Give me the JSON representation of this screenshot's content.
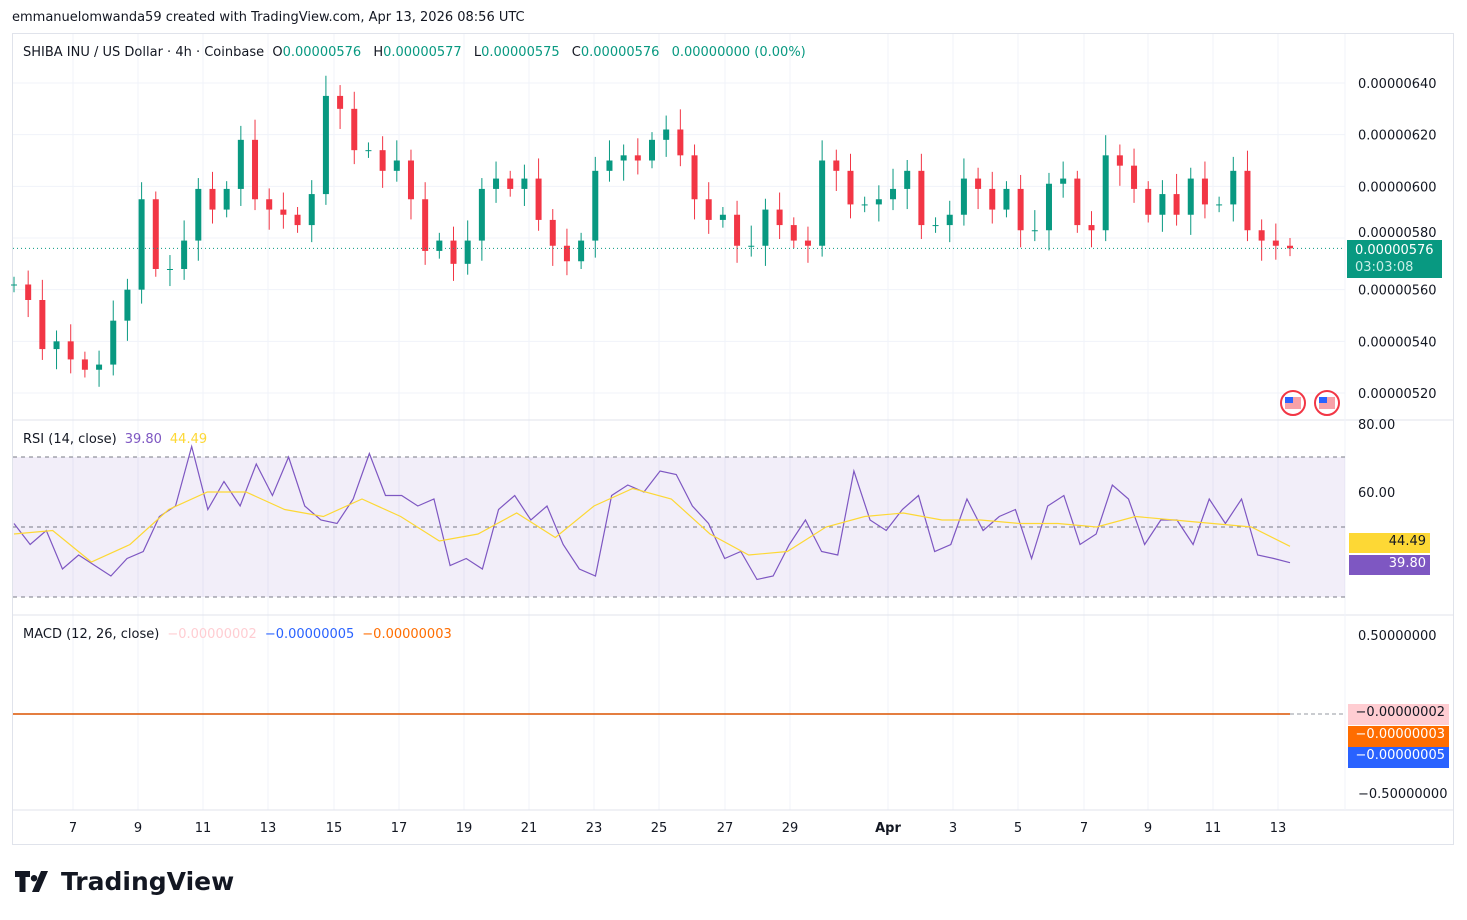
{
  "credit": "emmanuelomwanda59 created with TradingView.com, Apr 13, 2026 08:56 UTC",
  "symbol": {
    "title": "SHIBA INU / US Dollar · 4h · Coinbase",
    "o_label": "O",
    "o": "0.00000576",
    "h_label": "H",
    "h": "0.00000577",
    "l_label": "L",
    "l": "0.00000575",
    "c_label": "C",
    "c": "0.00000576",
    "change": "0.00000000 (0.00%)"
  },
  "price_tag": {
    "value": "0.00000576",
    "countdown": "03:03:08"
  },
  "rsi_legend": {
    "name": "RSI (14, close)",
    "rsi": "39.80",
    "ma": "44.49"
  },
  "macd_legend": {
    "name": "MACD (12, 26, close)",
    "hist": "−0.00000002",
    "macd": "−0.00000005",
    "signal": "−0.00000003"
  },
  "macd_tags": {
    "hist": "−0.00000002",
    "signal": "−0.00000003",
    "macd": "−0.00000005"
  },
  "logo": "TradingView",
  "colors": {
    "up": "#089981",
    "down": "#f23645",
    "rsi": "#7e57c2",
    "rsi_ma": "#fdd835",
    "macd": "#2962ff",
    "signal": "#ff6d00",
    "hist": "#ffcdd2"
  },
  "chart_data": [
    {
      "type": "candlestick",
      "title": "SHIBA INU / US Dollar · 4h · Coinbase",
      "y_ticks": [
        "0.00000640",
        "0.00000620",
        "0.00000600",
        "0.00000580",
        "0.00000560",
        "0.00000540",
        "0.00000520"
      ],
      "ylim": [
        5.14e-06,
        6.61e-06
      ],
      "x_ticks": [
        "7",
        "9",
        "11",
        "13",
        "15",
        "17",
        "19",
        "21",
        "23",
        "25",
        "27",
        "29",
        "Apr",
        "3",
        "5",
        "7",
        "9",
        "11",
        "13"
      ],
      "close": [
        5.62e-06,
        5.56e-06,
        5.37e-06,
        5.4e-06,
        5.33e-06,
        5.29e-06,
        5.31e-06,
        5.48e-06,
        5.6e-06,
        5.95e-06,
        5.68e-06,
        5.68e-06,
        5.79e-06,
        5.99e-06,
        5.91e-06,
        5.99e-06,
        6.18e-06,
        5.95e-06,
        5.91e-06,
        5.89e-06,
        5.85e-06,
        5.97e-06,
        6.35e-06,
        6.3e-06,
        6.14e-06,
        6.14e-06,
        6.06e-06,
        6.1e-06,
        5.95e-06,
        5.75e-06,
        5.79e-06,
        5.7e-06,
        5.79e-06,
        5.99e-06,
        6.03e-06,
        5.99e-06,
        6.03e-06,
        5.87e-06,
        5.77e-06,
        5.71e-06,
        5.79e-06,
        6.06e-06,
        6.1e-06,
        6.12e-06,
        6.1e-06,
        6.18e-06,
        6.22e-06,
        6.12e-06,
        5.95e-06,
        5.87e-06,
        5.89e-06,
        5.77e-06,
        5.77e-06,
        5.91e-06,
        5.85e-06,
        5.79e-06,
        5.77e-06,
        6.1e-06,
        6.06e-06,
        5.93e-06,
        5.93e-06,
        5.95e-06,
        5.99e-06,
        6.06e-06,
        5.85e-06,
        5.85e-06,
        5.89e-06,
        6.03e-06,
        5.99e-06,
        5.91e-06,
        5.99e-06,
        5.83e-06,
        5.83e-06,
        6.01e-06,
        6.03e-06,
        5.85e-06,
        5.83e-06,
        6.12e-06,
        6.08e-06,
        5.99e-06,
        5.89e-06,
        5.97e-06,
        5.89e-06,
        6.03e-06,
        5.93e-06,
        5.93e-06,
        6.06e-06,
        5.83e-06,
        5.79e-06,
        5.77e-06,
        5.76e-06
      ]
    },
    {
      "type": "line",
      "title": "RSI (14, close)",
      "y_ticks": [
        "80.00",
        "60.00"
      ],
      "ylim": [
        26,
        80
      ],
      "bands": [
        70,
        50,
        30
      ],
      "series": [
        {
          "name": "RSI",
          "values": [
            51,
            45,
            49,
            38,
            42,
            39,
            36,
            41,
            43,
            53,
            56,
            73,
            55,
            63,
            56,
            68,
            59,
            70,
            56,
            52,
            51,
            58,
            71,
            59,
            59,
            56,
            58,
            39,
            41,
            38,
            55,
            59,
            52,
            56,
            45,
            38,
            36,
            59,
            62,
            60,
            66,
            65,
            56,
            51,
            41,
            43,
            35,
            36,
            45,
            52,
            43,
            42,
            66,
            52,
            49,
            55,
            59,
            43,
            45,
            58,
            49,
            53,
            55,
            41,
            56,
            59,
            45,
            48,
            62,
            58,
            45,
            52,
            52,
            45,
            58,
            51,
            58,
            42,
            41,
            39.8
          ]
        },
        {
          "name": "MA",
          "values": [
            48,
            49,
            40,
            45,
            55,
            60,
            60,
            55,
            53,
            58,
            53,
            46,
            48,
            54,
            47,
            56,
            61,
            58,
            48,
            42,
            43,
            50,
            53,
            54,
            52,
            52,
            51,
            51,
            50,
            53,
            52,
            51,
            50,
            44.49
          ]
        }
      ]
    },
    {
      "type": "line",
      "title": "MACD (12, 26, close)",
      "y_ticks": [
        "0.50000000",
        "−0.50000000"
      ],
      "ylim": [
        -0.6,
        0.6
      ],
      "series": [
        {
          "name": "Histogram",
          "value": -2e-08
        },
        {
          "name": "MACD",
          "value": -5e-08
        },
        {
          "name": "Signal",
          "value": -3e-08
        }
      ]
    }
  ]
}
